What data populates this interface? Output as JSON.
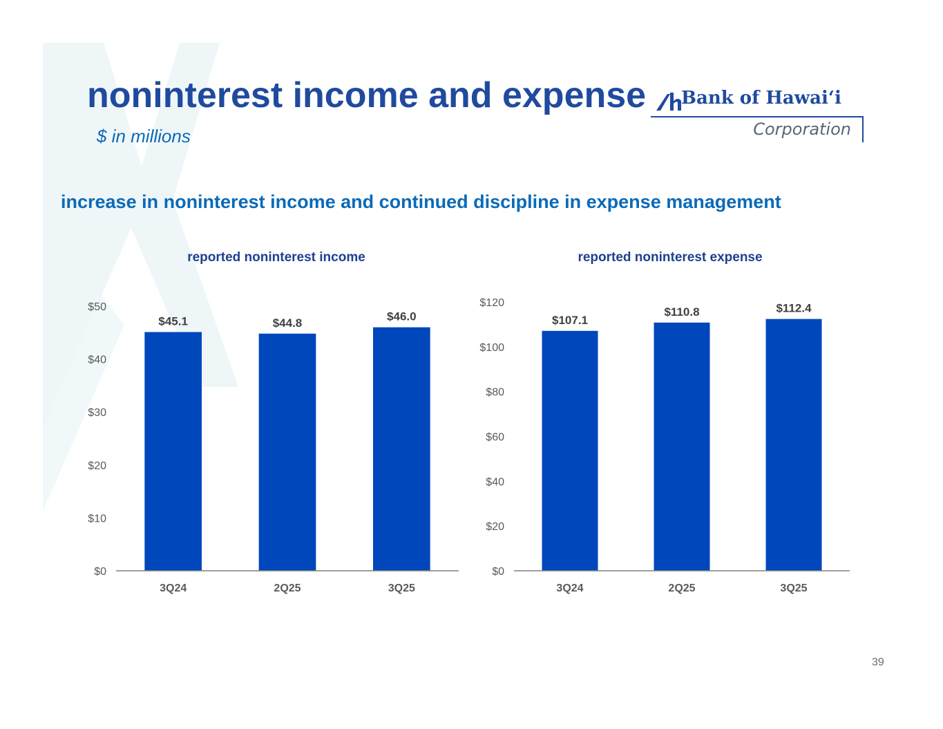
{
  "title": "noninterest income and expense",
  "units_note": "$ in millions",
  "logo": {
    "name": "Bank of Hawai‘i",
    "subtitle": "Corporation"
  },
  "headline": "increase in noninterest income and continued discipline in expense management",
  "page_number": "39",
  "colors": {
    "bar": "#0047bb",
    "title": "#1f4a9e",
    "accent": "#0a6ab8",
    "axis_text": "#595959",
    "data_label": "#404040"
  },
  "chart_data": [
    {
      "type": "bar",
      "title": "reported noninterest income",
      "categories": [
        "3Q24",
        "2Q25",
        "3Q25"
      ],
      "values": [
        45.1,
        44.8,
        46.0
      ],
      "data_labels": [
        "$45.1",
        "$44.8",
        "$46.0"
      ],
      "yticks": [
        0,
        10,
        20,
        30,
        40,
        50
      ],
      "ytick_labels": [
        "$0",
        "$10",
        "$20",
        "$30",
        "$40",
        "$50"
      ],
      "ylim": [
        0,
        50
      ],
      "grid": false,
      "legend": "none"
    },
    {
      "type": "bar",
      "title": "reported noninterest expense",
      "categories": [
        "3Q24",
        "2Q25",
        "3Q25"
      ],
      "values": [
        107.1,
        110.8,
        112.4
      ],
      "data_labels": [
        "$107.1",
        "$110.8",
        "$112.4"
      ],
      "yticks": [
        0,
        20,
        40,
        60,
        80,
        100,
        120
      ],
      "ytick_labels": [
        "$0",
        "$20",
        "$40",
        "$60",
        "$80",
        "$100",
        "$120"
      ],
      "ylim": [
        0,
        120
      ],
      "grid": false,
      "legend": "none"
    }
  ]
}
